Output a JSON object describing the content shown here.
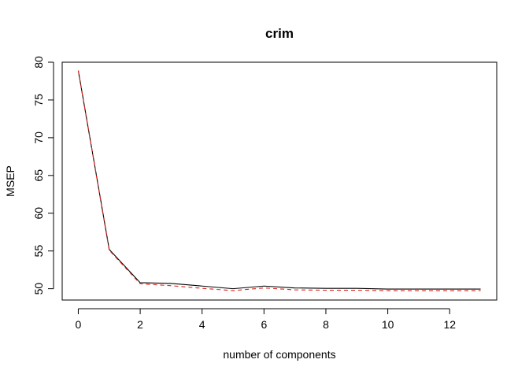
{
  "chart_data": {
    "type": "line",
    "title": "crim",
    "xlabel": "number of components",
    "ylabel": "MSEP",
    "xlim": [
      -0.52,
      13.52
    ],
    "ylim": [
      48.5,
      80.0
    ],
    "x_ticks": [
      0,
      2,
      4,
      6,
      8,
      10,
      12
    ],
    "y_ticks": [
      50,
      55,
      60,
      65,
      70,
      75,
      80
    ],
    "x": [
      0,
      1,
      2,
      3,
      4,
      5,
      6,
      7,
      8,
      9,
      10,
      11,
      12,
      13
    ],
    "series": [
      {
        "values": [
          78.9,
          55.2,
          50.8,
          50.7,
          50.35,
          50.0,
          50.35,
          50.1,
          50.05,
          50.05,
          49.95,
          49.95,
          49.95,
          49.95
        ],
        "color": "#000000",
        "dash": "solid"
      },
      {
        "values": [
          78.9,
          55.1,
          50.65,
          50.4,
          50.05,
          49.75,
          50.1,
          49.85,
          49.8,
          49.8,
          49.75,
          49.75,
          49.75,
          49.75
        ],
        "color": "#e0211a",
        "dash": "dashed"
      }
    ],
    "grid": false,
    "box": true
  }
}
